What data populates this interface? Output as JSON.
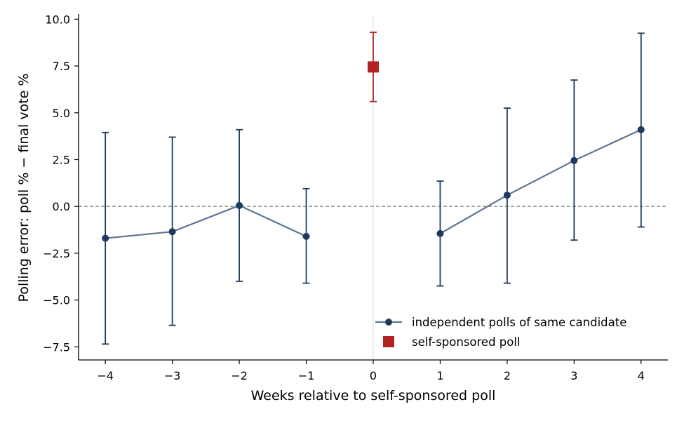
{
  "chart_data": {
    "type": "scatter",
    "xlabel": "Weeks relative to self-sponsored poll",
    "ylabel": "Polling error: poll % − final vote %",
    "xlim": [
      -4.4,
      4.4
    ],
    "ylim": [
      -8.2,
      10.2
    ],
    "x_ticks": [
      -4,
      -3,
      -2,
      -1,
      0,
      1,
      2,
      3,
      4
    ],
    "x_tick_labels": [
      "−4",
      "−3",
      "−2",
      "−1",
      "0",
      "1",
      "2",
      "3",
      "4"
    ],
    "y_ticks": [
      10.0,
      7.5,
      5.0,
      2.5,
      0.0,
      -2.5,
      -5.0,
      -7.5
    ],
    "y_tick_labels": [
      "10.0",
      "7.5",
      "5.0",
      "2.5",
      "0.0",
      "−2.5",
      "−5.0",
      "−7.5"
    ],
    "reference_line_y": 0,
    "reference_line_x": 0,
    "legend_position": "bottom-right",
    "series": [
      {
        "name": "independent polls of same candidate",
        "marker": "circle",
        "color": "#1f3a5f",
        "line_color": "#5f7590",
        "segments": [
          [
            {
              "x": -4,
              "y": -1.7,
              "lo": -7.35,
              "hi": 3.95
            },
            {
              "x": -3,
              "y": -1.35,
              "lo": -6.35,
              "hi": 3.7
            },
            {
              "x": -2,
              "y": 0.05,
              "lo": -4.0,
              "hi": 4.1
            },
            {
              "x": -1,
              "y": -1.6,
              "lo": -4.1,
              "hi": 0.95
            }
          ],
          [
            {
              "x": 1,
              "y": -1.45,
              "lo": -4.25,
              "hi": 1.35
            },
            {
              "x": 2,
              "y": 0.6,
              "lo": -4.1,
              "hi": 5.25
            },
            {
              "x": 3,
              "y": 2.45,
              "lo": -1.8,
              "hi": 6.75
            },
            {
              "x": 4,
              "y": 4.1,
              "lo": -1.1,
              "hi": 9.25
            }
          ]
        ]
      },
      {
        "name": "self-sponsored poll",
        "marker": "square",
        "color": "#b22222",
        "points": [
          {
            "x": 0,
            "y": 7.45,
            "lo": 5.6,
            "hi": 9.3
          }
        ]
      }
    ]
  }
}
